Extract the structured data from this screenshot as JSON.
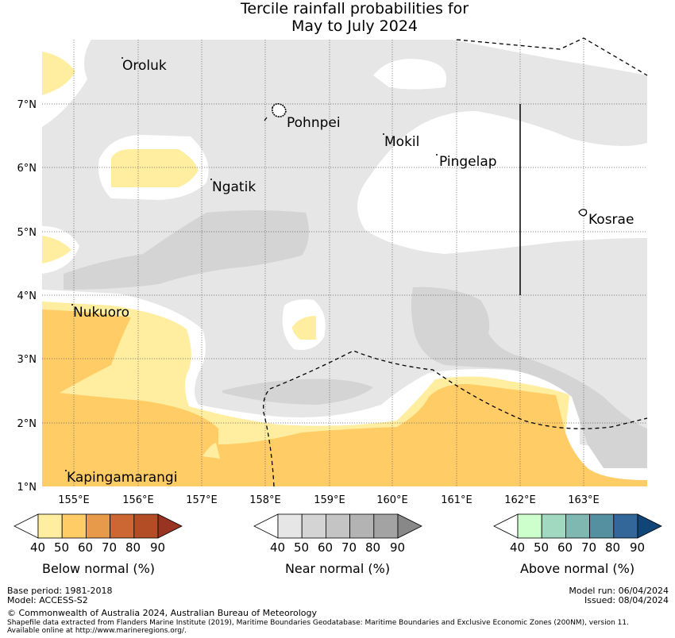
{
  "title": {
    "line1": "Tercile rainfall probabilities for",
    "line2": "May to July 2024"
  },
  "map": {
    "lon_ticks": [
      "155°E",
      "156°E",
      "157°E",
      "158°E",
      "159°E",
      "160°E",
      "161°E",
      "162°E",
      "163°E"
    ],
    "lat_ticks": [
      "7°N",
      "6°N",
      "5°N",
      "4°N",
      "3°N",
      "2°N",
      "1°N"
    ],
    "places": [
      "Oroluk",
      "Pohnpei",
      "Mokil",
      "Pingelap",
      "Ngatik",
      "Kosrae",
      "Nukuoro",
      "Kapingamarangi"
    ]
  },
  "legends": [
    {
      "title": "Below normal (%)",
      "ticks": [
        "40",
        "50",
        "60",
        "70",
        "80",
        "90"
      ],
      "colors": [
        "#ffeea0",
        "#ffcc66",
        "#e69a4a",
        "#cc6633",
        "#b34d26",
        "#993322"
      ]
    },
    {
      "title": "Near normal (%)",
      "ticks": [
        "40",
        "50",
        "60",
        "70",
        "80",
        "90"
      ],
      "colors": [
        "#e6e6e6",
        "#d4d4d4",
        "#c4c4c4",
        "#b3b3b3",
        "#a3a3a3",
        "#888888"
      ]
    },
    {
      "title": "Above normal (%)",
      "ticks": [
        "40",
        "50",
        "60",
        "70",
        "80",
        "90"
      ],
      "colors": [
        "#ccffcc",
        "#a0d8c0",
        "#7fb8b0",
        "#5590a0",
        "#336699",
        "#114477"
      ]
    }
  ],
  "footer": {
    "base_period": "Base period: 1981-2018",
    "model": "Model: ACCESS-S2",
    "model_run": "Model run: 06/04/2024",
    "issued": "Issued: 08/04/2024",
    "copyright": "© Commonwealth of Australia 2024, Australian Bureau of Meteorology",
    "shapefile_note": "Shapefile data extracted from Flanders Marine Institute (2019), Maritime Boundaries Geodatabase: Maritime Boundaries and Exclusive Economic Zones (200NM), version 11.",
    "available": "Available online at http://www.marineregions.org/."
  }
}
